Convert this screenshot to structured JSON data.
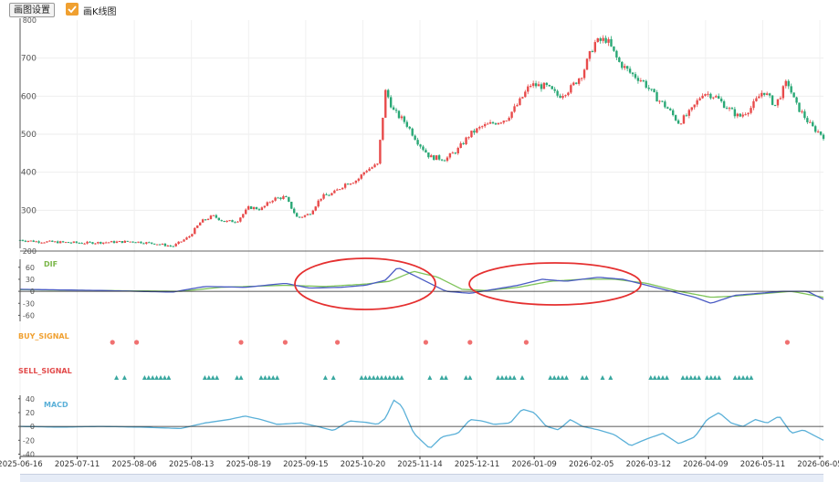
{
  "toolbar": {
    "settings_label": "画图设置",
    "kline_label": "画K线图",
    "kline_checked": true,
    "accent": "#f0a030"
  },
  "chart_data": {
    "type": "candlestick",
    "panels": [
      {
        "name": "price",
        "yticks": [
          300,
          400,
          500,
          600,
          700
        ],
        "ylim": [
          200,
          800
        ],
        "partial_tick_labels": [
          "800",
          "200"
        ]
      },
      {
        "name": "DIF",
        "label": "DIF",
        "label_color": "#7ab648",
        "yticks": [
          -60,
          -30,
          0,
          30,
          60
        ],
        "ylim": [
          -75,
          80
        ]
      },
      {
        "name": "BUY_SIGNAL",
        "label": "BUY_SIGNAL",
        "label_color": "#f0a030"
      },
      {
        "name": "SELL_SIGNAL",
        "label": "SELL_SIGNAL",
        "label_color": "#e24b4b"
      },
      {
        "name": "MACD",
        "label": "MACD",
        "label_color": "#5ab0d8",
        "yticks": [
          -40,
          -20,
          0,
          20,
          40
        ],
        "ylim": [
          -42,
          45
        ]
      }
    ],
    "xticks": [
      "2025-06-16",
      "2025-07-11",
      "2025-08-06",
      "2025-08-13",
      "2025-08-19",
      "2025-09-15",
      "2025-10-20",
      "2025-11-14",
      "2025-12-11",
      "2026-01-09",
      "2026-02-05",
      "2026-03-12",
      "2026-04-09",
      "2026-05-11",
      "2026-06-05"
    ],
    "price_path": [
      [
        0,
        222
      ],
      [
        0.02,
        218
      ],
      [
        0.05,
        216
      ],
      [
        0.08,
        214
      ],
      [
        0.11,
        216
      ],
      [
        0.14,
        218
      ],
      [
        0.17,
        212
      ],
      [
        0.19,
        205
      ],
      [
        0.21,
        230
      ],
      [
        0.225,
        270
      ],
      [
        0.24,
        285
      ],
      [
        0.255,
        270
      ],
      [
        0.27,
        272
      ],
      [
        0.285,
        308
      ],
      [
        0.3,
        303
      ],
      [
        0.315,
        330
      ],
      [
        0.33,
        335
      ],
      [
        0.345,
        280
      ],
      [
        0.36,
        290
      ],
      [
        0.375,
        335
      ],
      [
        0.39,
        345
      ],
      [
        0.405,
        370
      ],
      [
        0.42,
        380
      ],
      [
        0.43,
        405
      ],
      [
        0.445,
        420
      ],
      [
        0.455,
        615
      ],
      [
        0.465,
        560
      ],
      [
        0.48,
        530
      ],
      [
        0.495,
        480
      ],
      [
        0.51,
        440
      ],
      [
        0.53,
        435
      ],
      [
        0.545,
        460
      ],
      [
        0.56,
        500
      ],
      [
        0.575,
        520
      ],
      [
        0.59,
        530
      ],
      [
        0.605,
        540
      ],
      [
        0.62,
        580
      ],
      [
        0.635,
        630
      ],
      [
        0.655,
        625
      ],
      [
        0.67,
        600
      ],
      [
        0.685,
        620
      ],
      [
        0.7,
        660
      ],
      [
        0.715,
        740
      ],
      [
        0.73,
        750
      ],
      [
        0.745,
        690
      ],
      [
        0.76,
        660
      ],
      [
        0.775,
        640
      ],
      [
        0.79,
        600
      ],
      [
        0.805,
        570
      ],
      [
        0.82,
        530
      ],
      [
        0.835,
        560
      ],
      [
        0.85,
        610
      ],
      [
        0.865,
        600
      ],
      [
        0.88,
        570
      ],
      [
        0.895,
        545
      ],
      [
        0.91,
        570
      ],
      [
        0.925,
        615
      ],
      [
        0.94,
        575
      ],
      [
        0.955,
        640
      ],
      [
        0.965,
        580
      ],
      [
        0.975,
        550
      ],
      [
        0.985,
        520
      ],
      [
        1.0,
        495
      ]
    ],
    "dif_path": [
      [
        0,
        5
      ],
      [
        0.1,
        2
      ],
      [
        0.19,
        -2
      ],
      [
        0.23,
        12
      ],
      [
        0.28,
        10
      ],
      [
        0.33,
        20
      ],
      [
        0.36,
        8
      ],
      [
        0.4,
        10
      ],
      [
        0.43,
        15
      ],
      [
        0.455,
        28
      ],
      [
        0.47,
        60
      ],
      [
        0.485,
        45
      ],
      [
        0.5,
        30
      ],
      [
        0.53,
        0
      ],
      [
        0.56,
        -5
      ],
      [
        0.59,
        5
      ],
      [
        0.62,
        15
      ],
      [
        0.65,
        30
      ],
      [
        0.68,
        25
      ],
      [
        0.72,
        35
      ],
      [
        0.75,
        30
      ],
      [
        0.78,
        15
      ],
      [
        0.81,
        0
      ],
      [
        0.84,
        -15
      ],
      [
        0.86,
        -30
      ],
      [
        0.89,
        -10
      ],
      [
        0.92,
        -5
      ],
      [
        0.95,
        0
      ],
      [
        0.98,
        0
      ],
      [
        1.0,
        -20
      ]
    ],
    "dea_path": [
      [
        0,
        4
      ],
      [
        0.1,
        2
      ],
      [
        0.2,
        0
      ],
      [
        0.25,
        10
      ],
      [
        0.33,
        15
      ],
      [
        0.38,
        12
      ],
      [
        0.43,
        18
      ],
      [
        0.46,
        25
      ],
      [
        0.49,
        50
      ],
      [
        0.52,
        35
      ],
      [
        0.55,
        5
      ],
      [
        0.58,
        2
      ],
      [
        0.62,
        10
      ],
      [
        0.66,
        25
      ],
      [
        0.7,
        30
      ],
      [
        0.74,
        30
      ],
      [
        0.78,
        20
      ],
      [
        0.82,
        0
      ],
      [
        0.86,
        -15
      ],
      [
        0.89,
        -12
      ],
      [
        0.93,
        -5
      ],
      [
        0.96,
        0
      ],
      [
        1.0,
        -15
      ]
    ],
    "macd_path": [
      [
        0,
        0
      ],
      [
        0.05,
        -1
      ],
      [
        0.1,
        0
      ],
      [
        0.15,
        -1
      ],
      [
        0.2,
        -3
      ],
      [
        0.23,
        5
      ],
      [
        0.26,
        10
      ],
      [
        0.28,
        15
      ],
      [
        0.3,
        10
      ],
      [
        0.32,
        3
      ],
      [
        0.35,
        5
      ],
      [
        0.37,
        0
      ],
      [
        0.39,
        -6
      ],
      [
        0.41,
        8
      ],
      [
        0.43,
        6
      ],
      [
        0.445,
        3
      ],
      [
        0.455,
        12
      ],
      [
        0.465,
        38
      ],
      [
        0.475,
        30
      ],
      [
        0.49,
        -10
      ],
      [
        0.51,
        -32
      ],
      [
        0.525,
        -15
      ],
      [
        0.545,
        -10
      ],
      [
        0.56,
        10
      ],
      [
        0.575,
        8
      ],
      [
        0.59,
        3
      ],
      [
        0.61,
        5
      ],
      [
        0.625,
        25
      ],
      [
        0.64,
        20
      ],
      [
        0.655,
        0
      ],
      [
        0.67,
        -5
      ],
      [
        0.685,
        10
      ],
      [
        0.7,
        0
      ],
      [
        0.72,
        -5
      ],
      [
        0.74,
        -12
      ],
      [
        0.76,
        -28
      ],
      [
        0.78,
        -18
      ],
      [
        0.8,
        -10
      ],
      [
        0.82,
        -25
      ],
      [
        0.84,
        -15
      ],
      [
        0.855,
        10
      ],
      [
        0.87,
        20
      ],
      [
        0.885,
        5
      ],
      [
        0.9,
        0
      ],
      [
        0.915,
        10
      ],
      [
        0.93,
        5
      ],
      [
        0.945,
        15
      ],
      [
        0.96,
        -10
      ],
      [
        0.975,
        -5
      ],
      [
        1.0,
        -20
      ]
    ],
    "buy_signals": [
      0.115,
      0.145,
      0.275,
      0.33,
      0.395,
      0.505,
      0.56,
      0.63,
      0.955
    ],
    "sell_signals": [
      0.12,
      0.13,
      0.155,
      0.16,
      0.165,
      0.17,
      0.175,
      0.18,
      0.185,
      0.23,
      0.235,
      0.24,
      0.245,
      0.27,
      0.275,
      0.3,
      0.305,
      0.31,
      0.315,
      0.32,
      0.38,
      0.39,
      0.425,
      0.43,
      0.435,
      0.44,
      0.445,
      0.45,
      0.455,
      0.46,
      0.465,
      0.47,
      0.475,
      0.51,
      0.525,
      0.53,
      0.555,
      0.56,
      0.595,
      0.6,
      0.605,
      0.61,
      0.615,
      0.625,
      0.66,
      0.665,
      0.67,
      0.675,
      0.68,
      0.7,
      0.705,
      0.725,
      0.735,
      0.785,
      0.79,
      0.795,
      0.8,
      0.805,
      0.825,
      0.83,
      0.835,
      0.84,
      0.845,
      0.855,
      0.86,
      0.865,
      0.87,
      0.89,
      0.895,
      0.9,
      0.905,
      0.91
    ],
    "colors": {
      "up": "#e84b4b",
      "down": "#2aa876",
      "dif": "#4a5bc4",
      "dea": "#7fc45a",
      "macd": "#5ab0d8",
      "buy": "#f07070",
      "sell": "#3aa8a0",
      "ellipse": "#e53030"
    }
  }
}
